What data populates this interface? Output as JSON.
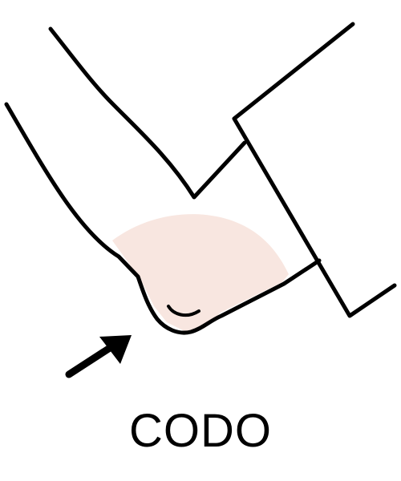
{
  "caption": "CODO",
  "colors": {
    "outline": "#000000",
    "skin_highlight": "#f8e6e0",
    "background": "#ffffff"
  },
  "icons": [
    "elbow-illustration",
    "arrow-icon"
  ]
}
